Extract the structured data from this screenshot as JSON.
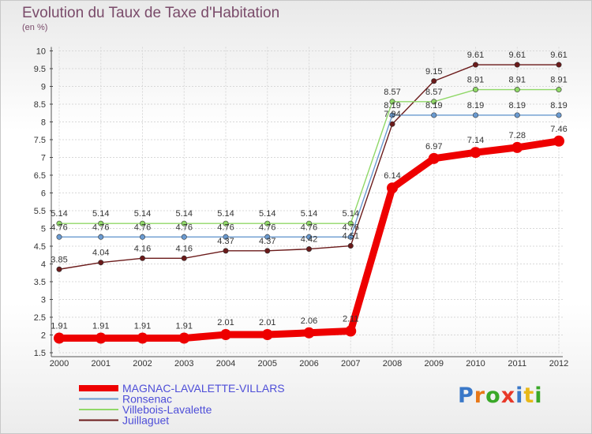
{
  "title": "Evolution du Taux de Taxe d'Habitation",
  "units": "(en %)",
  "logo": {
    "text": "Proxiti",
    "colors": [
      "#3a78c8",
      "#e87818",
      "#3aa828",
      "#e83828",
      "#3a78c8",
      "#e8b818",
      "#3aa828"
    ]
  },
  "chart_data": {
    "type": "line",
    "x": [
      "2000",
      "2001",
      "2002",
      "2003",
      "2004",
      "2005",
      "2006",
      "2007",
      "2008",
      "2009",
      "2010",
      "2011",
      "2012"
    ],
    "ylim": [
      1.5,
      10
    ],
    "yticks": [
      "1.5",
      "2",
      "2.5",
      "3",
      "3.5",
      "4",
      "4.5",
      "5",
      "5.5",
      "6",
      "6.5",
      "7",
      "7.5",
      "8",
      "8.5",
      "9",
      "9.5",
      "10"
    ],
    "grid": true,
    "series": [
      {
        "name": "Juillaguet",
        "color": "#6b1a1a",
        "values": [
          3.85,
          4.04,
          4.16,
          4.16,
          4.37,
          4.37,
          4.42,
          4.51,
          7.94,
          9.15,
          9.61,
          9.61,
          9.61
        ],
        "labels": [
          "3.85",
          "4.04",
          "4.16",
          "4.16",
          "4.37",
          "4.37",
          "4.42",
          "4.51",
          "7.94",
          "9.15",
          "9.61",
          "9.61",
          "9.61"
        ]
      },
      {
        "name": "Villebois-Lavalette",
        "color": "#90d868",
        "values": [
          5.14,
          5.14,
          5.14,
          5.14,
          5.14,
          5.14,
          5.14,
          5.14,
          8.57,
          8.57,
          8.91,
          8.91,
          8.91
        ],
        "labels": [
          "5.14",
          "5.14",
          "5.14",
          "5.14",
          "5.14",
          "5.14",
          "5.14",
          "5.14",
          "8.57",
          "8.57",
          "8.91",
          "8.91",
          "8.91"
        ]
      },
      {
        "name": "Ronsenac",
        "color": "#6a9ad0",
        "values": [
          4.76,
          4.76,
          4.76,
          4.76,
          4.76,
          4.76,
          4.76,
          4.76,
          8.19,
          8.19,
          8.19,
          8.19,
          8.19
        ],
        "labels": [
          "4.76",
          "4.76",
          "4.76",
          "4.76",
          "4.76",
          "4.76",
          "4.76",
          "4.76",
          "8.19",
          "8.19",
          "8.19",
          "8.19",
          "8.19"
        ]
      },
      {
        "name": "MAGNAC-LAVALETTE-VILLARS",
        "color": "#ee0000",
        "values": [
          1.91,
          1.91,
          1.91,
          1.91,
          2.01,
          2.01,
          2.06,
          2.11,
          6.14,
          6.97,
          7.14,
          7.28,
          7.46
        ],
        "labels": [
          "1.91",
          "1.91",
          "1.91",
          "1.91",
          "2.01",
          "2.01",
          "2.06",
          "2.11",
          "6.14",
          "6.97",
          "7.14",
          "7.28",
          "7.46"
        ]
      }
    ],
    "legend": [
      "MAGNAC-LAVALETTE-VILLARS",
      "Ronsenac",
      "Villebois-Lavalette",
      "Juillaguet"
    ],
    "legend_position": "bottom-left"
  }
}
